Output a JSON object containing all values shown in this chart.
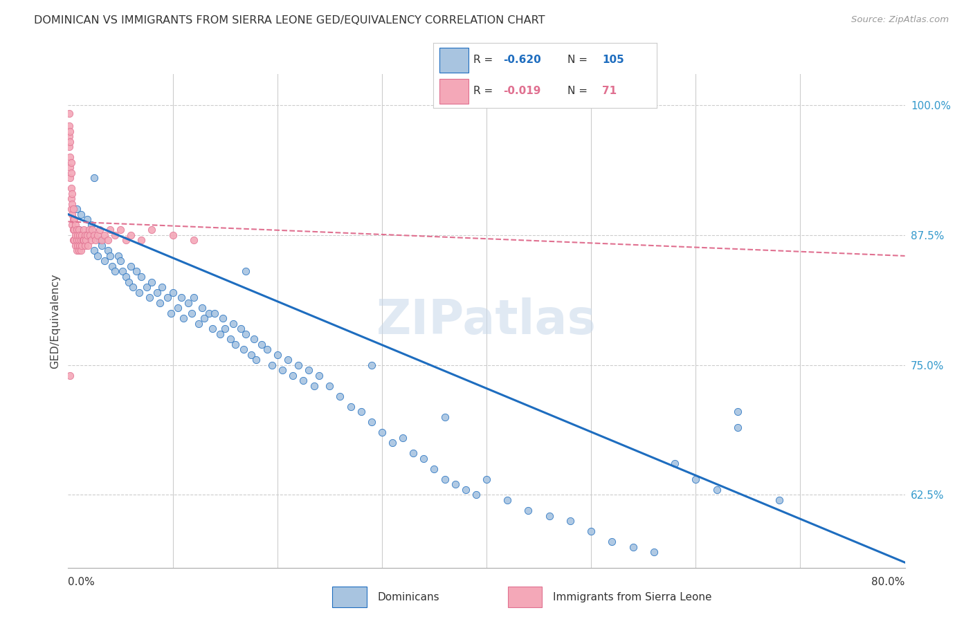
{
  "title": "DOMINICAN VS IMMIGRANTS FROM SIERRA LEONE GED/EQUIVALENCY CORRELATION CHART",
  "source": "Source: ZipAtlas.com",
  "ylabel": "GED/Equivalency",
  "ytick_labels": [
    "62.5%",
    "75.0%",
    "87.5%",
    "100.0%"
  ],
  "ytick_values": [
    0.625,
    0.75,
    0.875,
    1.0
  ],
  "xmin": 0.0,
  "xmax": 0.8,
  "ymin": 0.555,
  "ymax": 1.03,
  "blue_color": "#a8c4e0",
  "pink_color": "#f4a8b8",
  "blue_line_color": "#1e6dbf",
  "pink_line_color": "#e07090",
  "blue_R": "-0.620",
  "blue_N": "105",
  "pink_R": "-0.019",
  "pink_N": "71",
  "watermark": "ZIPatlas",
  "legend_label_blue": "Dominicans",
  "legend_label_pink": "Immigrants from Sierra Leone",
  "blue_trend_x": [
    0.0,
    0.8
  ],
  "blue_trend_y": [
    0.895,
    0.56
  ],
  "pink_trend_x": [
    0.0,
    0.8
  ],
  "pink_trend_y": [
    0.888,
    0.855
  ],
  "blue_scatter_x": [
    0.008,
    0.01,
    0.012,
    0.015,
    0.018,
    0.02,
    0.022,
    0.025,
    0.028,
    0.03,
    0.032,
    0.035,
    0.038,
    0.04,
    0.042,
    0.045,
    0.048,
    0.05,
    0.052,
    0.055,
    0.058,
    0.06,
    0.062,
    0.065,
    0.068,
    0.07,
    0.075,
    0.078,
    0.08,
    0.085,
    0.088,
    0.09,
    0.095,
    0.098,
    0.1,
    0.105,
    0.108,
    0.11,
    0.115,
    0.118,
    0.12,
    0.125,
    0.128,
    0.13,
    0.135,
    0.138,
    0.14,
    0.145,
    0.148,
    0.15,
    0.155,
    0.158,
    0.16,
    0.165,
    0.168,
    0.17,
    0.175,
    0.178,
    0.18,
    0.185,
    0.19,
    0.195,
    0.2,
    0.205,
    0.21,
    0.215,
    0.22,
    0.225,
    0.23,
    0.235,
    0.24,
    0.25,
    0.26,
    0.27,
    0.28,
    0.29,
    0.3,
    0.31,
    0.32,
    0.33,
    0.34,
    0.35,
    0.36,
    0.37,
    0.38,
    0.39,
    0.4,
    0.42,
    0.44,
    0.46,
    0.48,
    0.5,
    0.52,
    0.54,
    0.56,
    0.58,
    0.6,
    0.62,
    0.64,
    0.68,
    0.025,
    0.17,
    0.29,
    0.36,
    0.64
  ],
  "blue_scatter_y": [
    0.9,
    0.88,
    0.895,
    0.87,
    0.89,
    0.875,
    0.885,
    0.86,
    0.855,
    0.87,
    0.865,
    0.85,
    0.86,
    0.855,
    0.845,
    0.84,
    0.855,
    0.85,
    0.84,
    0.835,
    0.83,
    0.845,
    0.825,
    0.84,
    0.82,
    0.835,
    0.825,
    0.815,
    0.83,
    0.82,
    0.81,
    0.825,
    0.815,
    0.8,
    0.82,
    0.805,
    0.815,
    0.795,
    0.81,
    0.8,
    0.815,
    0.79,
    0.805,
    0.795,
    0.8,
    0.785,
    0.8,
    0.78,
    0.795,
    0.785,
    0.775,
    0.79,
    0.77,
    0.785,
    0.765,
    0.78,
    0.76,
    0.775,
    0.755,
    0.77,
    0.765,
    0.75,
    0.76,
    0.745,
    0.755,
    0.74,
    0.75,
    0.735,
    0.745,
    0.73,
    0.74,
    0.73,
    0.72,
    0.71,
    0.705,
    0.695,
    0.685,
    0.675,
    0.68,
    0.665,
    0.66,
    0.65,
    0.64,
    0.635,
    0.63,
    0.625,
    0.64,
    0.62,
    0.61,
    0.605,
    0.6,
    0.59,
    0.58,
    0.575,
    0.57,
    0.655,
    0.64,
    0.63,
    0.705,
    0.62,
    0.93,
    0.84,
    0.75,
    0.7,
    0.69
  ],
  "pink_scatter_x": [
    0.001,
    0.001,
    0.001,
    0.001,
    0.002,
    0.002,
    0.002,
    0.002,
    0.002,
    0.003,
    0.003,
    0.003,
    0.003,
    0.003,
    0.004,
    0.004,
    0.004,
    0.004,
    0.005,
    0.005,
    0.005,
    0.005,
    0.006,
    0.006,
    0.006,
    0.007,
    0.007,
    0.007,
    0.008,
    0.008,
    0.008,
    0.009,
    0.009,
    0.01,
    0.01,
    0.01,
    0.011,
    0.011,
    0.012,
    0.012,
    0.013,
    0.013,
    0.014,
    0.015,
    0.015,
    0.016,
    0.016,
    0.017,
    0.018,
    0.019,
    0.02,
    0.021,
    0.022,
    0.023,
    0.025,
    0.026,
    0.028,
    0.03,
    0.032,
    0.035,
    0.038,
    0.04,
    0.045,
    0.05,
    0.055,
    0.06,
    0.07,
    0.08,
    0.1,
    0.12,
    0.002
  ],
  "pink_scatter_y": [
    0.992,
    0.98,
    0.97,
    0.96,
    0.975,
    0.965,
    0.95,
    0.94,
    0.93,
    0.945,
    0.935,
    0.92,
    0.91,
    0.9,
    0.915,
    0.905,
    0.895,
    0.885,
    0.9,
    0.89,
    0.88,
    0.87,
    0.89,
    0.88,
    0.87,
    0.885,
    0.875,
    0.865,
    0.88,
    0.87,
    0.86,
    0.875,
    0.865,
    0.88,
    0.87,
    0.86,
    0.875,
    0.865,
    0.87,
    0.86,
    0.875,
    0.865,
    0.87,
    0.88,
    0.87,
    0.875,
    0.865,
    0.87,
    0.875,
    0.865,
    0.88,
    0.875,
    0.87,
    0.88,
    0.875,
    0.87,
    0.875,
    0.88,
    0.87,
    0.875,
    0.87,
    0.88,
    0.875,
    0.88,
    0.87,
    0.875,
    0.87,
    0.88,
    0.875,
    0.87,
    0.74
  ]
}
